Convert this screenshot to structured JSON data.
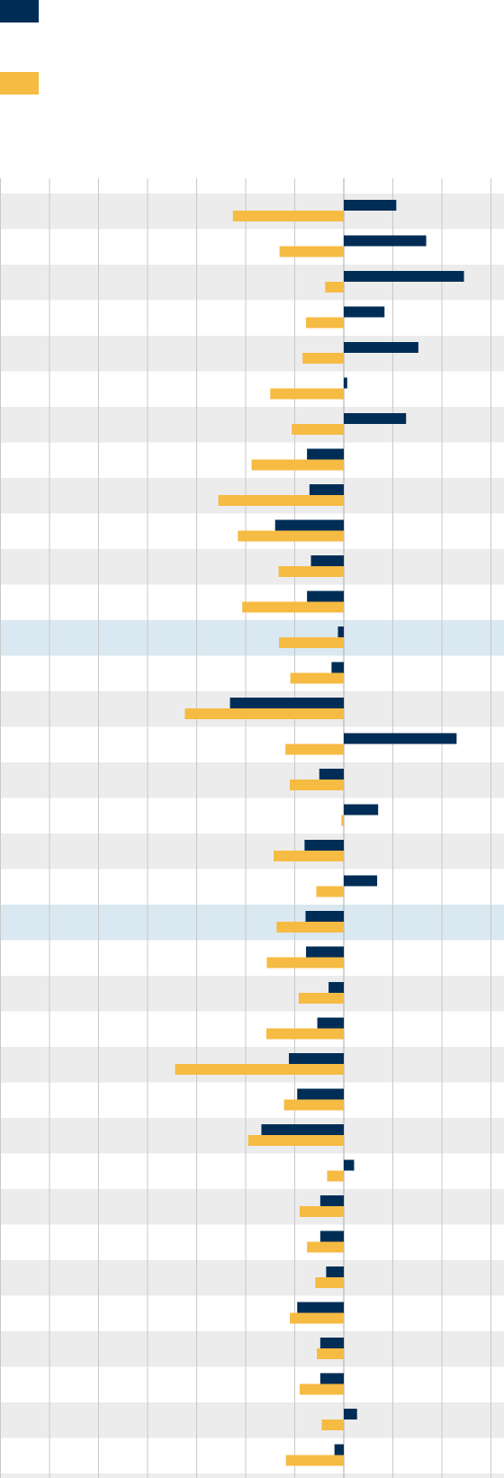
{
  "colors": {
    "series_a": "#002d56",
    "series_b": "#f6bb43",
    "row_band": "#ececec",
    "row_highlight": "#dae8f1",
    "gridline": "#c8c8c8",
    "background": "#ffffff"
  },
  "legend": {
    "items": [
      {
        "label": "",
        "color": "#002d56"
      },
      {
        "label": "",
        "color": "#f6bb43"
      }
    ],
    "placement": "top-left"
  },
  "chart_data": {
    "type": "bar",
    "orientation": "horizontal",
    "title": "",
    "xlabel": "",
    "ylabel": "",
    "xlim": [
      -7,
      3.3
    ],
    "grid": true,
    "gridline_step": 1,
    "categories": [
      "",
      "",
      "",
      "",
      "",
      "",
      "",
      "",
      "",
      "",
      "",
      "",
      "",
      "",
      "",
      "",
      "",
      "",
      "",
      "",
      "",
      "",
      "",
      "",
      "",
      "",
      "",
      "",
      "",
      "",
      "",
      "",
      "",
      "",
      "",
      "",
      ""
    ],
    "highlighted_rows": [
      12,
      20
    ],
    "series": [
      {
        "values": [
          1.07,
          1.68,
          2.45,
          0.83,
          1.52,
          0.07,
          1.27,
          -0.75,
          -0.7,
          -1.4,
          -0.67,
          -0.75,
          -0.12,
          -0.25,
          -2.32,
          2.3,
          -0.5,
          0.7,
          -0.8,
          0.68,
          -0.78,
          -0.77,
          -0.31,
          -0.54,
          -1.12,
          -0.95,
          -1.68,
          0.21,
          -0.48,
          -0.48,
          -0.36,
          -0.95,
          -0.48,
          -0.48,
          0.27,
          -0.19,
          0
        ]
      },
      {
        "values": [
          -2.26,
          -1.31,
          -0.38,
          -0.77,
          -0.84,
          -1.5,
          -1.06,
          -1.88,
          -2.56,
          -2.16,
          -1.33,
          -2.07,
          -1.32,
          -1.09,
          -3.24,
          -1.19,
          -1.1,
          -0.05,
          -1.43,
          -0.56,
          -1.37,
          -1.57,
          -0.92,
          -1.58,
          -3.44,
          -1.22,
          -1.95,
          -0.34,
          -0.9,
          -0.75,
          -0.58,
          -1.1,
          -0.55,
          -0.9,
          -0.45,
          -1.18,
          0
        ]
      }
    ]
  }
}
